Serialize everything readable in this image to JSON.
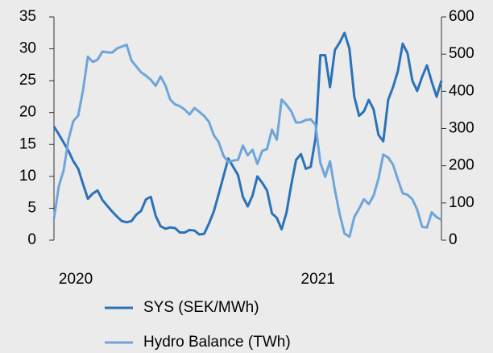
{
  "chart_data": {
    "type": "line",
    "x": [
      2019.9,
      2019.92,
      2019.94,
      2019.96,
      2019.98,
      2020.0,
      2020.02,
      2020.04,
      2020.06,
      2020.08,
      2020.1,
      2020.12,
      2020.14,
      2020.16,
      2020.18,
      2020.2,
      2020.22,
      2020.24,
      2020.26,
      2020.28,
      2020.3,
      2020.32,
      2020.34,
      2020.36,
      2020.38,
      2020.4,
      2020.42,
      2020.44,
      2020.46,
      2020.48,
      2020.5,
      2020.52,
      2020.54,
      2020.56,
      2020.58,
      2020.6,
      2020.62,
      2020.64,
      2020.66,
      2020.68,
      2020.7,
      2020.72,
      2020.74,
      2020.76,
      2020.78,
      2020.8,
      2020.82,
      2020.84,
      2020.86,
      2020.88,
      2020.9,
      2020.92,
      2020.94,
      2020.96,
      2020.98,
      2021.0,
      2021.02,
      2021.04,
      2021.06,
      2021.08,
      2021.1,
      2021.12,
      2021.14,
      2021.16,
      2021.18,
      2021.2,
      2021.22,
      2021.24,
      2021.26,
      2021.28,
      2021.3,
      2021.32,
      2021.34,
      2021.36,
      2021.38,
      2021.4,
      2021.42,
      2021.44,
      2021.46,
      2021.48,
      2021.5
    ],
    "series": [
      {
        "name": "SYS (SEK/MWh)",
        "color": "#2b72b9",
        "values": [
          17.8,
          16.6,
          15.3,
          14.0,
          12.4,
          11.2,
          8.8,
          6.5,
          7.3,
          7.8,
          6.3,
          5.4,
          4.5,
          3.7,
          3.0,
          2.8,
          3.0,
          4.0,
          4.6,
          6.4,
          6.8,
          3.8,
          2.2,
          1.8,
          2.0,
          1.9,
          1.2,
          1.2,
          1.6,
          1.5,
          0.9,
          1.0,
          2.6,
          4.5,
          7.2,
          10.0,
          12.8,
          11.5,
          10.2,
          6.8,
          5.3,
          7.0,
          10.0,
          9.0,
          7.8,
          4.2,
          3.5,
          1.7,
          4.3,
          8.7,
          12.6,
          13.5,
          11.2,
          11.5,
          16.0,
          29.0,
          29.0,
          24.0,
          29.8,
          31.0,
          32.5,
          30.0,
          22.5,
          19.5,
          20.2,
          22.0,
          20.5,
          16.5,
          15.5,
          22.0,
          24.0,
          26.5,
          30.8,
          29.3,
          25.0,
          23.4,
          25.6,
          27.4,
          24.8,
          22.5,
          25.0
        ]
      },
      {
        "name": "Hydro Balance (TWh)",
        "color": "#6fa5da",
        "axis": "y2",
        "values": [
          58,
          145,
          188,
          270,
          320,
          335,
          404,
          493,
          479,
          485,
          507,
          505,
          504,
          515,
          520,
          525,
          483,
          467,
          451,
          442,
          431,
          415,
          440,
          416,
          378,
          365,
          360,
          351,
          338,
          355,
          345,
          334,
          318,
          282,
          264,
          227,
          210,
          214,
          216,
          254,
          228,
          243,
          205,
          240,
          245,
          297,
          270,
          378,
          364,
          346,
          316,
          317,
          323,
          325,
          310,
          208,
          170,
          212,
          135,
          70,
          18,
          9,
          62,
          85,
          110,
          97,
          120,
          165,
          230,
          222,
          203,
          163,
          126,
          122,
          110,
          82,
          36,
          34,
          75,
          62,
          55
        ]
      }
    ],
    "xlim": [
      2019.9,
      2021.5
    ],
    "xticks": [
      2020,
      2021
    ],
    "ylim": [
      0,
      35
    ],
    "yticks": [
      0,
      5,
      10,
      15,
      20,
      25,
      30,
      35
    ],
    "y2lim": [
      0,
      600
    ],
    "y2ticks": [
      0,
      100,
      200,
      300,
      400,
      500,
      600
    ],
    "legend": "bottom"
  }
}
